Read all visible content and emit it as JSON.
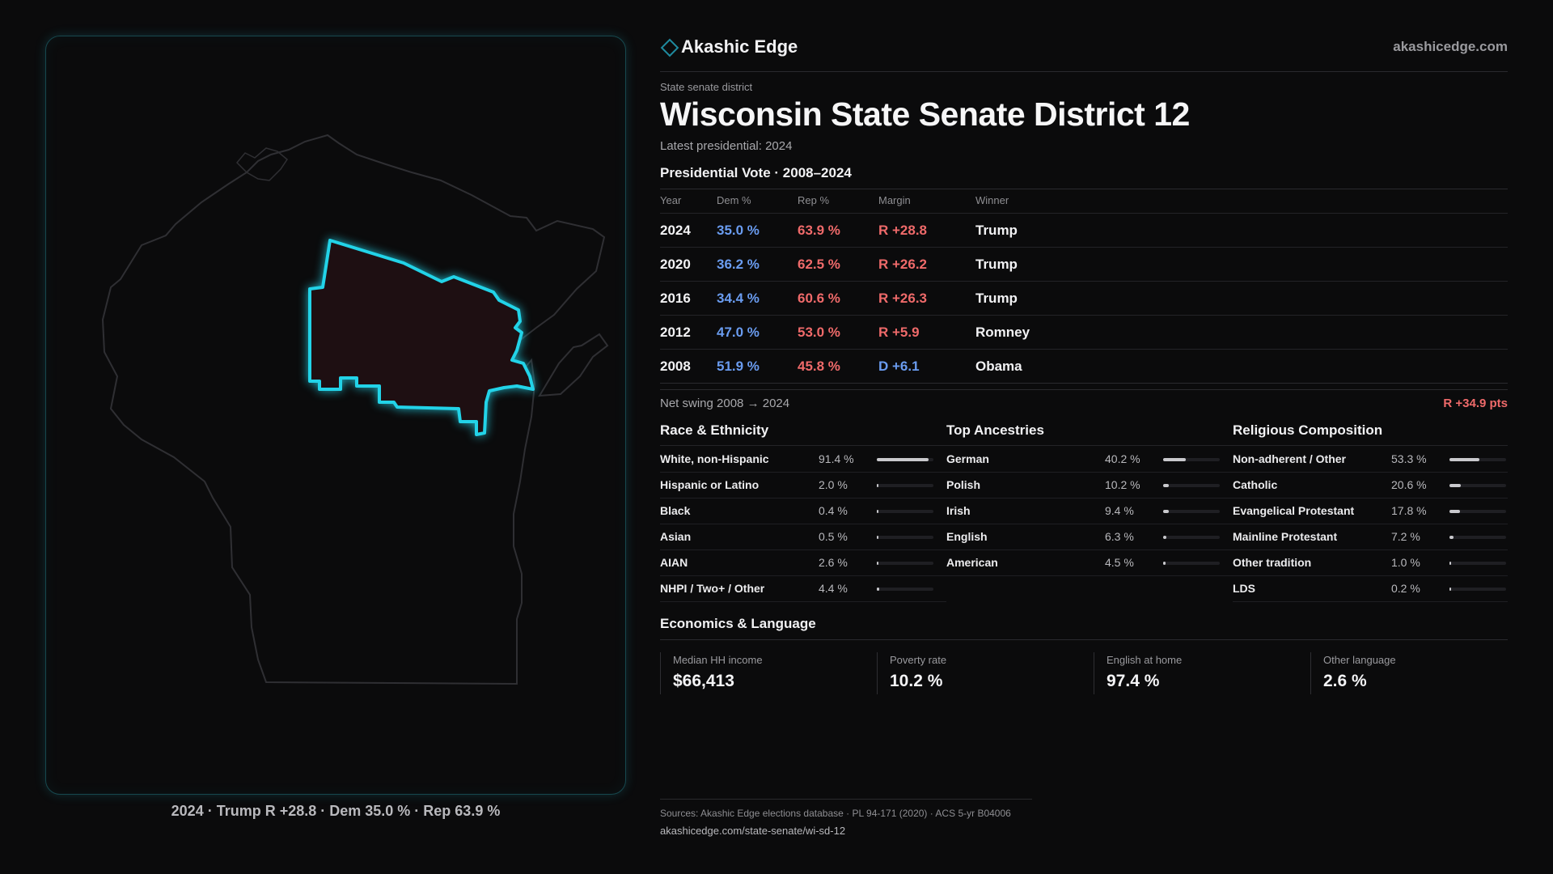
{
  "brand": {
    "name": "Akashic Edge",
    "url": "akashicedge.com"
  },
  "district": {
    "kicker": "State senate district",
    "title": "Wisconsin State Senate District 12",
    "subtitle": "Latest presidential: 2024"
  },
  "map": {
    "caption": "2024 · Trump R +28.8 · Dem 35.0 % · Rep 63.9 %",
    "highlight_color": "#22d3e8"
  },
  "presidential": {
    "title": "Presidential Vote · 2008–2024",
    "headers": {
      "year": "Year",
      "dem": "Dem %",
      "rep": "Rep %",
      "margin": "Margin",
      "winner": "Winner"
    },
    "rows": [
      {
        "year": "2024",
        "dem": "35.0 %",
        "rep": "63.9 %",
        "margin": "R +28.8",
        "party": "R",
        "winner": "Trump"
      },
      {
        "year": "2020",
        "dem": "36.2 %",
        "rep": "62.5 %",
        "margin": "R +26.2",
        "party": "R",
        "winner": "Trump"
      },
      {
        "year": "2016",
        "dem": "34.4 %",
        "rep": "60.6 %",
        "margin": "R +26.3",
        "party": "R",
        "winner": "Trump"
      },
      {
        "year": "2012",
        "dem": "47.0 %",
        "rep": "53.0 %",
        "margin": "R +5.9",
        "party": "R",
        "winner": "Romney"
      },
      {
        "year": "2008",
        "dem": "51.9 %",
        "rep": "45.8 %",
        "margin": "D +6.1",
        "party": "D",
        "winner": "Obama"
      }
    ],
    "swing_label": "Net swing 2008 → 2024",
    "swing_value": "R +34.9 pts"
  },
  "race": {
    "title": "Race & Ethnicity",
    "rows": [
      {
        "label": "White, non-Hispanic",
        "value": "91.4 %",
        "pct": 91.4
      },
      {
        "label": "Hispanic or Latino",
        "value": "2.0 %",
        "pct": 2.0
      },
      {
        "label": "Black",
        "value": "0.4 %",
        "pct": 0.4
      },
      {
        "label": "Asian",
        "value": "0.5 %",
        "pct": 0.5
      },
      {
        "label": "AIAN",
        "value": "2.6 %",
        "pct": 2.6
      },
      {
        "label": "NHPI / Two+ / Other",
        "value": "4.4 %",
        "pct": 4.4
      }
    ]
  },
  "ancestry": {
    "title": "Top Ancestries",
    "rows": [
      {
        "label": "German",
        "value": "40.2 %",
        "pct": 40.2
      },
      {
        "label": "Polish",
        "value": "10.2 %",
        "pct": 10.2
      },
      {
        "label": "Irish",
        "value": "9.4 %",
        "pct": 9.4
      },
      {
        "label": "English",
        "value": "6.3 %",
        "pct": 6.3
      },
      {
        "label": "American",
        "value": "4.5 %",
        "pct": 4.5
      }
    ]
  },
  "religion": {
    "title": "Religious Composition",
    "rows": [
      {
        "label": "Non-adherent / Other",
        "value": "53.3 %",
        "pct": 53.3
      },
      {
        "label": "Catholic",
        "value": "20.6 %",
        "pct": 20.6
      },
      {
        "label": "Evangelical Protestant",
        "value": "17.8 %",
        "pct": 17.8
      },
      {
        "label": "Mainline Protestant",
        "value": "7.2 %",
        "pct": 7.2
      },
      {
        "label": "Other tradition",
        "value": "1.0 %",
        "pct": 1.0
      },
      {
        "label": "LDS",
        "value": "0.2 %",
        "pct": 0.2
      }
    ]
  },
  "economics": {
    "title": "Economics & Language",
    "items": [
      {
        "label": "Median HH income",
        "value": "$66,413"
      },
      {
        "label": "Poverty rate",
        "value": "10.2 %"
      },
      {
        "label": "English at home",
        "value": "97.4 %"
      },
      {
        "label": "Other language",
        "value": "2.6 %"
      }
    ]
  },
  "sources": {
    "text": "Sources: Akashic Edge elections database · PL 94-171 (2020) · ACS 5-yr B04006",
    "url": "akashicedge.com/state-senate/wi-sd-12"
  },
  "colors": {
    "dem": "#6a9cf0",
    "rep": "#ef6a6a",
    "accent": "#22d3e8"
  }
}
